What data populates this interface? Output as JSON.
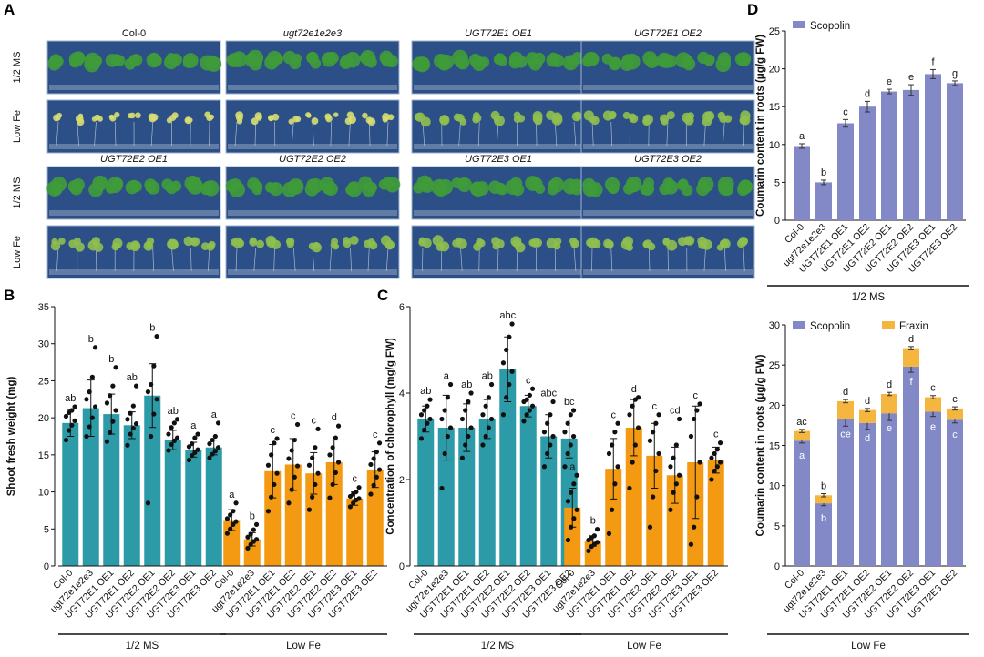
{
  "panel_labels": {
    "A": "A",
    "B": "B",
    "C": "C",
    "D": "D"
  },
  "colors": {
    "teal": "#2d9ba7",
    "orange": "#f39a12",
    "scopolin": "#8289c6",
    "fraxin": "#f5b640",
    "plate_bg": "#2b4f86",
    "seedling_green": "#3f9b3a",
    "seedling_yellow": "#d6dd72"
  },
  "panel_a": {
    "row_labels": [
      "1/2 MS",
      "Low Fe",
      "1/2 MS",
      "Low Fe"
    ],
    "top_titles": [
      "Col-0",
      "ugt72e1e2e3",
      "UGT72E1 OE1",
      "UGT72E1 OE2"
    ],
    "bottom_titles": [
      "UGT72E2 OE1",
      "UGT72E2 OE2",
      "UGT72E3 OE1",
      "UGT72E3 OE2"
    ]
  },
  "chart_data": [
    {
      "id": "B",
      "type": "bar",
      "ylabel": "Shoot fresh weight (mg)",
      "ylim": [
        0,
        35
      ],
      "yticks": [
        0,
        5,
        10,
        15,
        20,
        25,
        30,
        35
      ],
      "categories": [
        "Col-0",
        "ugt72e1e2e3",
        "UGT72E1 OE1",
        "UGT72E1 OE2",
        "UGT72E2 OE1",
        "UGT72E2 OE2",
        "UGT72E3 OE1",
        "UGT72E3 OE2"
      ],
      "groups": [
        "1/2 MS",
        "Low Fe"
      ],
      "series": [
        {
          "name": "1/2 MS",
          "color": "teal",
          "values": [
            19.3,
            21.3,
            20.5,
            19.0,
            23.0,
            17.0,
            15.7,
            16.0
          ],
          "errors": [
            1.8,
            3.8,
            2.7,
            1.8,
            4.3,
            1.3,
            1.0,
            1.0
          ],
          "sig": [
            "ab",
            "b",
            "b",
            "ab",
            "b",
            "ab",
            "a",
            "a"
          ],
          "points": [
            [
              17.0,
              18.3,
              19.0,
              19.6,
              20.2,
              20.7,
              21.0,
              21.5
            ],
            [
              17.5,
              18.8,
              20.0,
              21.5,
              22.5,
              23.5,
              25.5,
              29.5
            ],
            [
              16.8,
              18.0,
              19.5,
              21.0,
              22.0,
              23.0,
              24.3,
              26.8
            ],
            [
              16.3,
              17.8,
              18.6,
              19.2,
              19.8,
              20.6,
              21.6,
              24.3
            ],
            [
              8.5,
              17.5,
              20.5,
              22.5,
              23.5,
              24.5,
              27.0,
              31.0
            ],
            [
              15.6,
              16.4,
              16.9,
              17.3,
              17.8,
              18.7,
              19.3,
              19.8
            ],
            [
              14.3,
              14.9,
              15.3,
              15.7,
              16.1,
              16.5,
              17.3,
              17.8
            ],
            [
              14.6,
              15.1,
              15.5,
              16.0,
              16.5,
              17.0,
              17.5,
              19.3
            ]
          ]
        },
        {
          "name": "Low Fe",
          "color": "orange",
          "values": [
            6.2,
            3.6,
            12.8,
            13.7,
            12.5,
            14.0,
            9.1,
            13.0
          ],
          "errors": [
            1.4,
            0.9,
            3.6,
            3.5,
            2.8,
            3.0,
            0.9,
            2.4
          ],
          "sig": [
            "a",
            "b",
            "c",
            "c",
            "c",
            "d",
            "c",
            "c"
          ],
          "points": [
            [
              4.4,
              5.0,
              5.6,
              6.0,
              6.4,
              6.9,
              7.4,
              8.5
            ],
            [
              2.4,
              2.9,
              3.3,
              3.6,
              3.9,
              4.3,
              4.9,
              5.6
            ],
            [
              7.4,
              9.3,
              11.0,
              12.5,
              13.6,
              15.0,
              16.6,
              17.2
            ],
            [
              8.5,
              10.3,
              12.0,
              13.5,
              14.5,
              15.6,
              17.0,
              19.1
            ],
            [
              7.6,
              9.3,
              11.0,
              12.5,
              13.6,
              14.6,
              16.0,
              18.5
            ],
            [
              9.2,
              11.0,
              12.6,
              14.0,
              15.0,
              16.0,
              17.3,
              18.9
            ],
            [
              8.0,
              8.5,
              8.9,
              9.1,
              9.4,
              9.7,
              10.0,
              10.6
            ],
            [
              9.7,
              10.9,
              12.0,
              13.0,
              13.7,
              14.5,
              15.4,
              16.6
            ]
          ]
        }
      ]
    },
    {
      "id": "C",
      "type": "bar",
      "ylabel": "Concentration of chlorophyll (mg/g FW)",
      "ylim": [
        0,
        6
      ],
      "yticks": [
        0,
        2,
        4,
        6
      ],
      "categories": [
        "Col-0",
        "ugt72e1e2e3",
        "UGT72E1 OE1",
        "UGT72E1 OE2",
        "UGT72E2 OE1",
        "UGT72E2 OE2",
        "UGT72E3 OE1",
        "UGT72E3 OE2"
      ],
      "groups": [
        "1/2 MS",
        "Low Fe"
      ],
      "series": [
        {
          "name": "1/2 MS",
          "color": "teal",
          "values": [
            3.4,
            3.2,
            3.2,
            3.4,
            4.55,
            3.7,
            3.0,
            2.95
          ],
          "errors": [
            0.3,
            0.75,
            0.55,
            0.45,
            0.75,
            0.25,
            0.5,
            0.45
          ],
          "sig": [
            "ab",
            "a",
            "ab",
            "ab",
            "abc",
            "c",
            "abc",
            "bc"
          ],
          "points": [
            [
              2.95,
              3.15,
              3.3,
              3.4,
              3.5,
              3.6,
              3.7,
              3.85
            ],
            [
              1.8,
              2.6,
              3.0,
              3.2,
              3.4,
              3.6,
              3.9,
              4.2
            ],
            [
              2.5,
              2.8,
              3.0,
              3.2,
              3.4,
              3.6,
              3.8,
              4.0
            ],
            [
              2.8,
              3.0,
              3.2,
              3.4,
              3.5,
              3.7,
              3.9,
              4.2
            ],
            [
              3.5,
              3.9,
              4.2,
              4.5,
              4.7,
              5.0,
              5.3,
              5.6
            ],
            [
              3.35,
              3.5,
              3.6,
              3.7,
              3.8,
              3.85,
              3.95,
              4.1
            ],
            [
              2.3,
              2.6,
              2.8,
              3.0,
              3.1,
              3.3,
              3.5,
              3.8
            ],
            [
              2.3,
              2.6,
              2.8,
              3.0,
              3.1,
              3.3,
              3.5,
              3.6
            ]
          ]
        },
        {
          "name": "Low Fe",
          "color": "orange",
          "values": [
            1.35,
            0.58,
            2.25,
            3.2,
            2.55,
            2.1,
            2.4,
            2.45
          ],
          "errors": [
            0.45,
            0.12,
            0.7,
            0.65,
            0.75,
            0.65,
            1.3,
            0.3
          ],
          "sig": [
            "a",
            "b",
            "c",
            "d",
            "c",
            "cd",
            "c",
            "c"
          ],
          "points": [
            [
              0.6,
              0.9,
              1.1,
              1.3,
              1.5,
              1.7,
              1.9,
              2.1
            ],
            [
              0.35,
              0.45,
              0.5,
              0.55,
              0.6,
              0.65,
              0.7,
              0.85
            ],
            [
              0.75,
              1.3,
              1.9,
              2.3,
              2.6,
              2.8,
              3.1,
              3.3
            ],
            [
              1.8,
              2.4,
              2.8,
              3.2,
              3.5,
              3.7,
              3.85,
              3.9
            ],
            [
              0.9,
              1.6,
              2.2,
              2.6,
              2.9,
              3.1,
              3.3,
              3.5
            ],
            [
              1.3,
              1.7,
              1.9,
              2.1,
              2.3,
              2.5,
              2.8,
              3.4
            ],
            [
              0.5,
              0.9,
              1.6,
              2.4,
              3.0,
              3.4,
              3.6,
              3.75
            ],
            [
              2.0,
              2.2,
              2.3,
              2.4,
              2.5,
              2.6,
              2.7,
              2.85
            ]
          ]
        }
      ]
    },
    {
      "id": "D-top",
      "type": "bar",
      "ylabel": "Coumarin content in roots  (μg/g FW)",
      "ylim": [
        0,
        25
      ],
      "yticks": [
        0,
        5,
        10,
        15,
        20,
        25
      ],
      "categories": [
        "Col-0",
        "ugt72e1e2e3",
        "UGT72E1 OE1",
        "UGT72E1 OE2",
        "UGT72E2 OE1",
        "UGT72E2 OE2",
        "UGT72E3 OE1",
        "UGT72E3 OE2"
      ],
      "group_label": "1/2 MS",
      "legend": [
        "Scopolin"
      ],
      "series": [
        {
          "name": "Scopolin",
          "color": "scopolin",
          "values": [
            9.8,
            5.0,
            12.8,
            15.0,
            17.0,
            17.2,
            19.3,
            18.1
          ],
          "errors": [
            0.3,
            0.3,
            0.5,
            0.7,
            0.3,
            0.7,
            0.6,
            0.3
          ],
          "sig": [
            "a",
            "b",
            "c",
            "d",
            "e",
            "e",
            "f",
            "g"
          ]
        }
      ]
    },
    {
      "id": "D-bottom",
      "type": "stacked-bar",
      "ylabel": "Coumarin content in roots  (μg/g FW)",
      "ylim": [
        0,
        30
      ],
      "yticks": [
        0,
        5,
        10,
        15,
        20,
        25,
        30
      ],
      "categories": [
        "Col-0",
        "ugt72e1e2e3",
        "UGT72E1 OE1",
        "UGT72E1 OE2",
        "UGT72E2 OE1",
        "UGT72E2 OE2",
        "UGT72E3 OE1",
        "UGT72E3 OE2"
      ],
      "group_label": "Low Fe",
      "legend": [
        "Scopolin",
        "Fraxin"
      ],
      "series": [
        {
          "name": "Scopolin",
          "color": "scopolin",
          "values": [
            15.6,
            7.8,
            18.3,
            17.8,
            19.0,
            24.8,
            19.2,
            18.2
          ],
          "errors": [
            0.3,
            0.3,
            0.9,
            0.8,
            0.9,
            0.7,
            0.6,
            0.4
          ],
          "sig": [
            "a",
            "b",
            "ce",
            "d",
            "e",
            "f",
            "e",
            "c"
          ]
        },
        {
          "name": "Fraxin",
          "color": "fraxin",
          "values": [
            1.2,
            1.0,
            2.2,
            1.6,
            2.4,
            2.3,
            1.8,
            1.4
          ],
          "errors": [
            0.2,
            0.2,
            0.2,
            0.2,
            0.2,
            0.2,
            0.2,
            0.2
          ],
          "sig": [
            "ac",
            "b",
            "d",
            "d",
            "d",
            "d",
            "c",
            "c"
          ]
        }
      ]
    }
  ]
}
